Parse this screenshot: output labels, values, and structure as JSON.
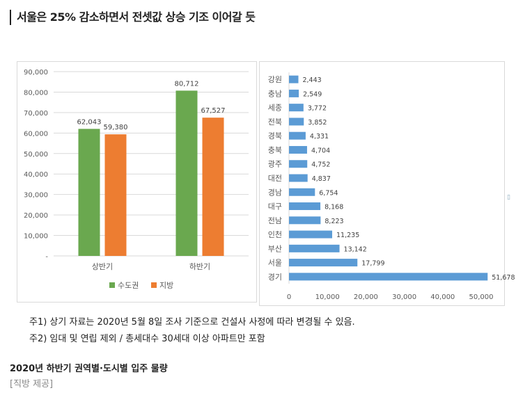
{
  "headline": "서울은 25% 감소하면서 전셋값 상승 기조 이어갈 듯",
  "notes": [
    "주1) 상기 자료는 2020년 5월 8일 조사 기준으로 건설사 사정에 따라 변경될 수 있음.",
    "주2) 임대 및 연립 제외 / 총세대수 30세대 이상 아파트만 포함"
  ],
  "caption": "2020년 하반기 권역별·도시별 입주 물량",
  "credit": "[직방 제공]",
  "edge_mark": "▯",
  "colors": {
    "capital": "#6aa84f",
    "local": "#ed7d31",
    "city": "#5b9bd5",
    "grid": "#d9d9d9",
    "axis_text": "#595959"
  },
  "chart_data": [
    {
      "type": "bar",
      "categories": [
        "상반기",
        "하반기"
      ],
      "series": [
        {
          "name": "수도권",
          "values": [
            62043,
            80712
          ]
        },
        {
          "name": "지방",
          "values": [
            59380,
            67527
          ]
        }
      ],
      "value_labels": [
        [
          "62,043",
          "80,712"
        ],
        [
          "59,380",
          "67,527"
        ]
      ],
      "ylim": [
        0,
        90000
      ],
      "yticks": [
        "-",
        "10,000",
        "20,000",
        "30,000",
        "40,000",
        "50,000",
        "60,000",
        "70,000",
        "80,000",
        "90,000"
      ],
      "grid": true,
      "legend_position": "bottom"
    },
    {
      "type": "bar",
      "orientation": "horizontal",
      "categories": [
        "강원",
        "충남",
        "세종",
        "전북",
        "경북",
        "충북",
        "광주",
        "대전",
        "경남",
        "대구",
        "전남",
        "인천",
        "부산",
        "서울",
        "경기"
      ],
      "values": [
        2443,
        2549,
        3772,
        3852,
        4331,
        4704,
        4752,
        4837,
        6754,
        8168,
        8223,
        11235,
        13142,
        17799,
        51678
      ],
      "value_labels": [
        "2,443",
        "2,549",
        "3,772",
        "3,852",
        "4,331",
        "4,704",
        "4,752",
        "4,837",
        "6,754",
        "8,168",
        "8,223",
        "11,235",
        "13,142",
        "17,799",
        "51,678"
      ],
      "xlim": [
        0,
        50000
      ],
      "xticks": [
        "0",
        "10,000",
        "20,000",
        "30,000",
        "40,000",
        "50,000"
      ],
      "grid": false
    }
  ]
}
